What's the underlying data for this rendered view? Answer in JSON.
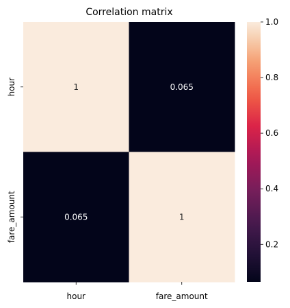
{
  "chart_data": {
    "type": "heatmap",
    "title": "Correlation matrix",
    "x_labels": [
      "hour",
      "fare_amount"
    ],
    "y_labels": [
      "hour",
      "fare_amount"
    ],
    "values": [
      [
        1.0,
        0.065
      ],
      [
        0.065,
        1.0
      ]
    ],
    "annotations": [
      [
        "1",
        "0.065"
      ],
      [
        "0.065",
        "1"
      ]
    ],
    "colorbar": {
      "min": 0.065,
      "max": 1.0,
      "ticks": [
        0.2,
        0.4,
        0.6,
        0.8,
        1.0
      ],
      "tick_labels": [
        "0.2",
        "0.4",
        "0.6",
        "0.8",
        "1.0"
      ]
    },
    "colormap": "rocket",
    "colors": {
      "low": "#03051a",
      "high": "#faebdd"
    }
  }
}
